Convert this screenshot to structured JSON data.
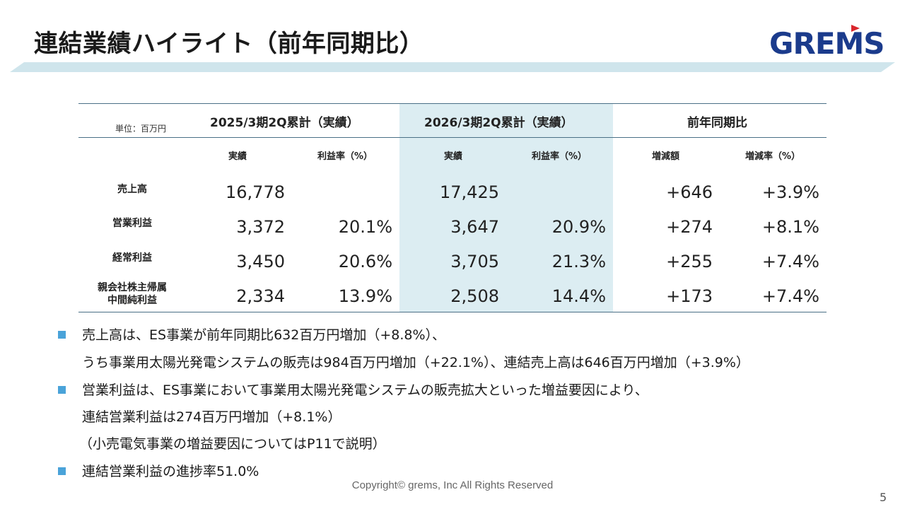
{
  "header": {
    "title": "連結業績ハイライト（前年同期比）",
    "logo_text": "GREMS",
    "logo_color": "#1b3b8c",
    "logo_flag_color": "#d9262c"
  },
  "table": {
    "unit_label": "単位：百万円",
    "periods": [
      {
        "label": "2025/3期2Q累計（実績）"
      },
      {
        "label": "2026/3期2Q累計（実績）"
      },
      {
        "label": "前年同期比"
      }
    ],
    "subheaders": [
      "実績",
      "利益率（%）",
      "実績",
      "利益率（%）",
      "増減額",
      "増減率（%）"
    ],
    "rows": [
      {
        "label": [
          "売上高"
        ],
        "values": [
          "16,778",
          "",
          "17,425",
          "",
          "+646",
          "+3.9%"
        ]
      },
      {
        "label": [
          "営業利益"
        ],
        "values": [
          "3,372",
          "20.1%",
          "3,647",
          "20.9%",
          "+274",
          "+8.1%"
        ]
      },
      {
        "label": [
          "経常利益"
        ],
        "values": [
          "3,450",
          "20.6%",
          "3,705",
          "21.3%",
          "+255",
          "+7.4%"
        ]
      },
      {
        "label": [
          "親会社株主帰属",
          "中間純利益"
        ],
        "values": [
          "2,334",
          "13.9%",
          "2,508",
          "14.4%",
          "+173",
          "+7.4%"
        ]
      }
    ],
    "highlight_color": "#dcedf2"
  },
  "notes": [
    "売上高は、ES事業が前年同期比632百万円増加（+8.8%）、",
    "うち事業用太陽光発電システムの販売は984百万円増加（+22.1%）、連結売上高は646百万円増加（+3.9%）",
    "営業利益は、ES事業において事業用太陽光発電システムの販売拡大といった増益要因により、",
    "連結営業利益は274百万円増加（+8.1%）",
    "（小売電気事業の増益要因についてはP11で説明）",
    "連結営業利益の進捗率51.0%"
  ],
  "footer": {
    "copyright": "Copyright© grems, Inc All Rights Reserved",
    "page_number": "5"
  }
}
